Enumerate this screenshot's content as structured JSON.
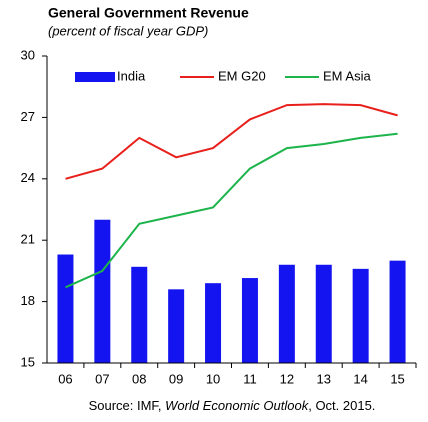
{
  "chart_data": {
    "type": "bar-line",
    "title": "General Government Revenue",
    "subtitle": "(percent of fiscal year GDP)",
    "source": [
      "Source: IMF, ",
      "World Economic Outlook",
      ", Oct. 2015."
    ],
    "categories": [
      "06",
      "07",
      "08",
      "09",
      "10",
      "11",
      "12",
      "13",
      "14",
      "15"
    ],
    "series": [
      {
        "name": "India",
        "type": "bar",
        "color": "#1414f0",
        "values": [
          20.3,
          22.0,
          19.7,
          18.6,
          18.9,
          19.15,
          19.8,
          19.8,
          19.6,
          20.0
        ]
      },
      {
        "name": "EM G20",
        "type": "line",
        "color": "#e8201c",
        "values": [
          24.0,
          24.5,
          26.0,
          25.05,
          25.5,
          26.9,
          27.6,
          27.65,
          27.6,
          27.1
        ]
      },
      {
        "name": "EM Asia",
        "type": "line",
        "color": "#1db44b",
        "values": [
          18.7,
          19.5,
          21.8,
          22.2,
          22.6,
          24.5,
          25.5,
          25.7,
          26.0,
          26.2
        ]
      }
    ],
    "ylim": [
      15,
      30
    ],
    "yticks": [
      15,
      18,
      21,
      24,
      27,
      30
    ],
    "grid": false,
    "legend": "top"
  }
}
